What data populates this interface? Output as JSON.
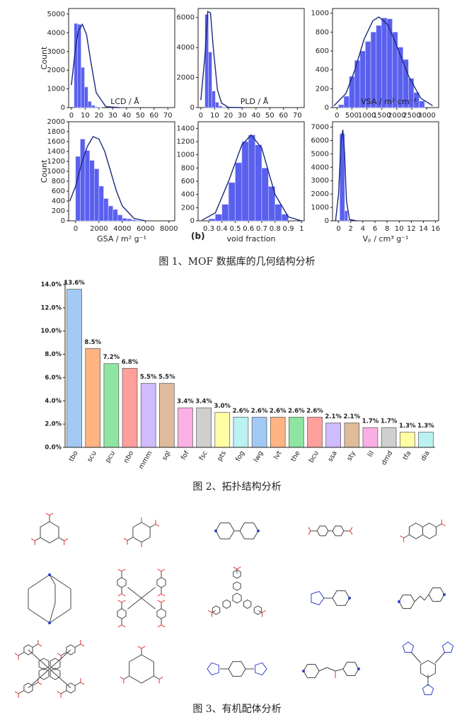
{
  "chart_data": [
    {
      "type": "histogram",
      "xlabel": "LCD / Å",
      "ylabel": "Count",
      "color": "#5a60ee",
      "line_color": "#1b2a7a",
      "bins": [
        2,
        4.5,
        7,
        9.5,
        12,
        14.5,
        17,
        19.5,
        22
      ],
      "counts": [
        4500,
        4450,
        2150,
        1100,
        330,
        120,
        40,
        20
      ],
      "fit_x": [
        0,
        3,
        5,
        8,
        11,
        14,
        18,
        25,
        35
      ],
      "fit_y": [
        1200,
        3200,
        4100,
        4450,
        3900,
        2500,
        800,
        50,
        0
      ],
      "xlim": [
        -2,
        75
      ],
      "xticks": [
        0,
        10,
        20,
        30,
        40,
        50,
        60,
        70
      ],
      "ylim": [
        0,
        5300
      ],
      "yticks": [
        0,
        1000,
        2000,
        3000,
        4000,
        5000
      ]
    },
    {
      "type": "histogram",
      "xlabel": "PLD / Å",
      "color": "#5a60ee",
      "line_color": "#1b2a7a",
      "bins": [
        3,
        5.5,
        8,
        10.5,
        13,
        15.5,
        18
      ],
      "counts": [
        6200,
        3700,
        1100,
        350,
        100,
        30
      ],
      "fit_x": [
        0,
        3,
        5,
        7,
        9,
        12,
        15,
        20,
        30
      ],
      "fit_y": [
        500,
        3500,
        6400,
        6300,
        4000,
        1200,
        300,
        20,
        0
      ],
      "xlim": [
        -2,
        75
      ],
      "xticks": [
        0,
        10,
        20,
        30,
        40,
        50,
        60,
        70
      ],
      "ylim": [
        0,
        6600
      ],
      "yticks": [
        0,
        2000,
        4000,
        6000
      ]
    },
    {
      "type": "histogram",
      "xlabel": "VSA / m² cm⁻³",
      "color": "#5a60ee",
      "line_color": "#1b2a7a",
      "bins": [
        50,
        230,
        410,
        590,
        770,
        950,
        1130,
        1310,
        1490,
        1670,
        1850,
        2030,
        2210,
        2390,
        2570,
        2750,
        2930
      ],
      "counts": [
        30,
        120,
        330,
        500,
        600,
        700,
        800,
        870,
        950,
        940,
        800,
        640,
        510,
        310,
        160,
        70
      ],
      "fit_x": [
        -100,
        300,
        600,
        900,
        1200,
        1400,
        1700,
        2000,
        2400,
        2800,
        3200
      ],
      "fit_y": [
        20,
        150,
        400,
        720,
        920,
        960,
        880,
        650,
        330,
        100,
        20
      ],
      "xlim": [
        -150,
        3400
      ],
      "xticks": [
        0,
        500,
        1000,
        1500,
        2000,
        2500,
        3000
      ],
      "ylim": [
        0,
        1050
      ],
      "yticks": [
        0,
        200,
        400,
        600,
        800,
        1000
      ]
    },
    {
      "type": "histogram",
      "xlabel": "GSA / m² g⁻¹",
      "ylabel": "Count",
      "color": "#5a60ee",
      "line_color": "#1b2a7a",
      "bins": [
        0,
        400,
        800,
        1200,
        1600,
        2000,
        2400,
        2800,
        3200,
        3600,
        4000,
        4400,
        4800,
        5200,
        5600,
        6000
      ],
      "counts": [
        1300,
        1650,
        1420,
        1220,
        1050,
        700,
        450,
        300,
        230,
        120,
        50,
        40,
        20,
        10,
        5
      ],
      "fit_x": [
        -500,
        0,
        500,
        1000,
        1500,
        2000,
        2500,
        3000,
        3500,
        4000,
        5000,
        6000
      ],
      "fit_y": [
        400,
        700,
        1150,
        1500,
        1700,
        1650,
        1400,
        1000,
        600,
        300,
        50,
        0
      ],
      "xlim": [
        -600,
        8500
      ],
      "xticks": [
        0,
        2000,
        4000,
        6000,
        8000
      ],
      "ylim": [
        0,
        2000
      ],
      "yticks": [
        0,
        200,
        400,
        600,
        800,
        1000,
        1200,
        1400,
        1600,
        1800,
        2000
      ]
    },
    {
      "type": "histogram",
      "xlabel": "void fraction",
      "annotation": "(b)",
      "color": "#5a60ee",
      "line_color": "#1b2a7a",
      "bins": [
        0.3,
        0.35,
        0.4,
        0.45,
        0.5,
        0.55,
        0.6,
        0.65,
        0.7,
        0.75,
        0.8,
        0.85,
        0.9
      ],
      "counts": [
        30,
        100,
        250,
        580,
        880,
        1200,
        1300,
        1150,
        800,
        520,
        250,
        100
      ],
      "fit_x": [
        0.25,
        0.35,
        0.45,
        0.55,
        0.62,
        0.7,
        0.8,
        0.9,
        1.0
      ],
      "fit_y": [
        10,
        120,
        600,
        1150,
        1300,
        1100,
        400,
        60,
        0
      ],
      "xlim": [
        0.22,
        1.02
      ],
      "xticks": [
        0.3,
        0.4,
        0.5,
        0.6,
        0.7,
        0.8,
        0.9,
        1.0
      ],
      "ylim": [
        0,
        1500
      ],
      "yticks": [
        0,
        200,
        400,
        600,
        800,
        1000,
        1200,
        1400
      ]
    },
    {
      "type": "histogram",
      "xlabel": "Vₚ / cm³ g⁻¹",
      "color": "#5a60ee",
      "line_color": "#1b2a7a",
      "bins": [
        0.2,
        1,
        1.5,
        2
      ],
      "counts": [
        6500,
        750,
        60
      ],
      "fit_x": [
        -0.5,
        0,
        0.4,
        0.7,
        1,
        1.3,
        1.8,
        3
      ],
      "fit_y": [
        0,
        2000,
        6000,
        6800,
        5000,
        1500,
        100,
        0
      ],
      "xlim": [
        -1,
        16.5
      ],
      "xticks": [
        0,
        2,
        4,
        6,
        8,
        10,
        12,
        14,
        16
      ],
      "ylim": [
        0,
        7400
      ],
      "yticks": [
        0,
        1000,
        2000,
        3000,
        4000,
        5000,
        6000,
        7000
      ]
    },
    {
      "type": "bar",
      "categories": [
        "tbo",
        "scu",
        "pcu",
        "nbo",
        "mmm",
        "sql",
        "fof",
        "fsc",
        "pts",
        "fog",
        "lwg",
        "lvt",
        "the",
        "bcu",
        "ssa",
        "sty",
        "lil",
        "dmd",
        "tfa",
        "dia"
      ],
      "values": [
        13.6,
        8.5,
        7.2,
        6.8,
        5.5,
        5.5,
        3.4,
        3.4,
        3.0,
        2.6,
        2.6,
        2.6,
        2.6,
        2.6,
        2.1,
        2.1,
        1.7,
        1.7,
        1.3,
        1.3
      ],
      "value_labels": [
        "13.6%",
        "8.5%",
        "7.2%",
        "6.8%",
        "5.5%",
        "5.5%",
        "3.4%",
        "3.4%",
        "3.0%",
        "2.6%",
        "2.6%",
        "2.6%",
        "2.6%",
        "2.6%",
        "2.1%",
        "2.1%",
        "1.7%",
        "1.7%",
        "1.3%",
        "1.3%"
      ],
      "colors": [
        "#a1c9f4",
        "#ffb482",
        "#8de5a1",
        "#ff9f9b",
        "#d0bbff",
        "#debb9b",
        "#fab0e4",
        "#cfcfcf",
        "#fffea3",
        "#b9f2f0",
        "#a1c9f4",
        "#ffb482",
        "#8de5a1",
        "#ff9f9b",
        "#d0bbff",
        "#debb9b",
        "#fab0e4",
        "#cfcfcf",
        "#fffea3",
        "#b9f2f0"
      ],
      "ylim": [
        0,
        14.3
      ],
      "yticks": [
        {
          "value": 0,
          "label": "0.0%"
        },
        {
          "value": 2,
          "label": "2.0%"
        },
        {
          "value": 4,
          "label": "4.0%"
        },
        {
          "value": 6,
          "label": "6.0%"
        },
        {
          "value": 8,
          "label": "8.0%"
        },
        {
          "value": 10,
          "label": "10.0%"
        },
        {
          "value": 12,
          "label": "12.0%"
        },
        {
          "value": 14,
          "label": "14.0%"
        }
      ]
    }
  ],
  "captions": [
    "图 1、MOF 数据库的几何结构分析",
    "图 2、拓扑结构分析",
    "图 3、有机配体分析"
  ]
}
